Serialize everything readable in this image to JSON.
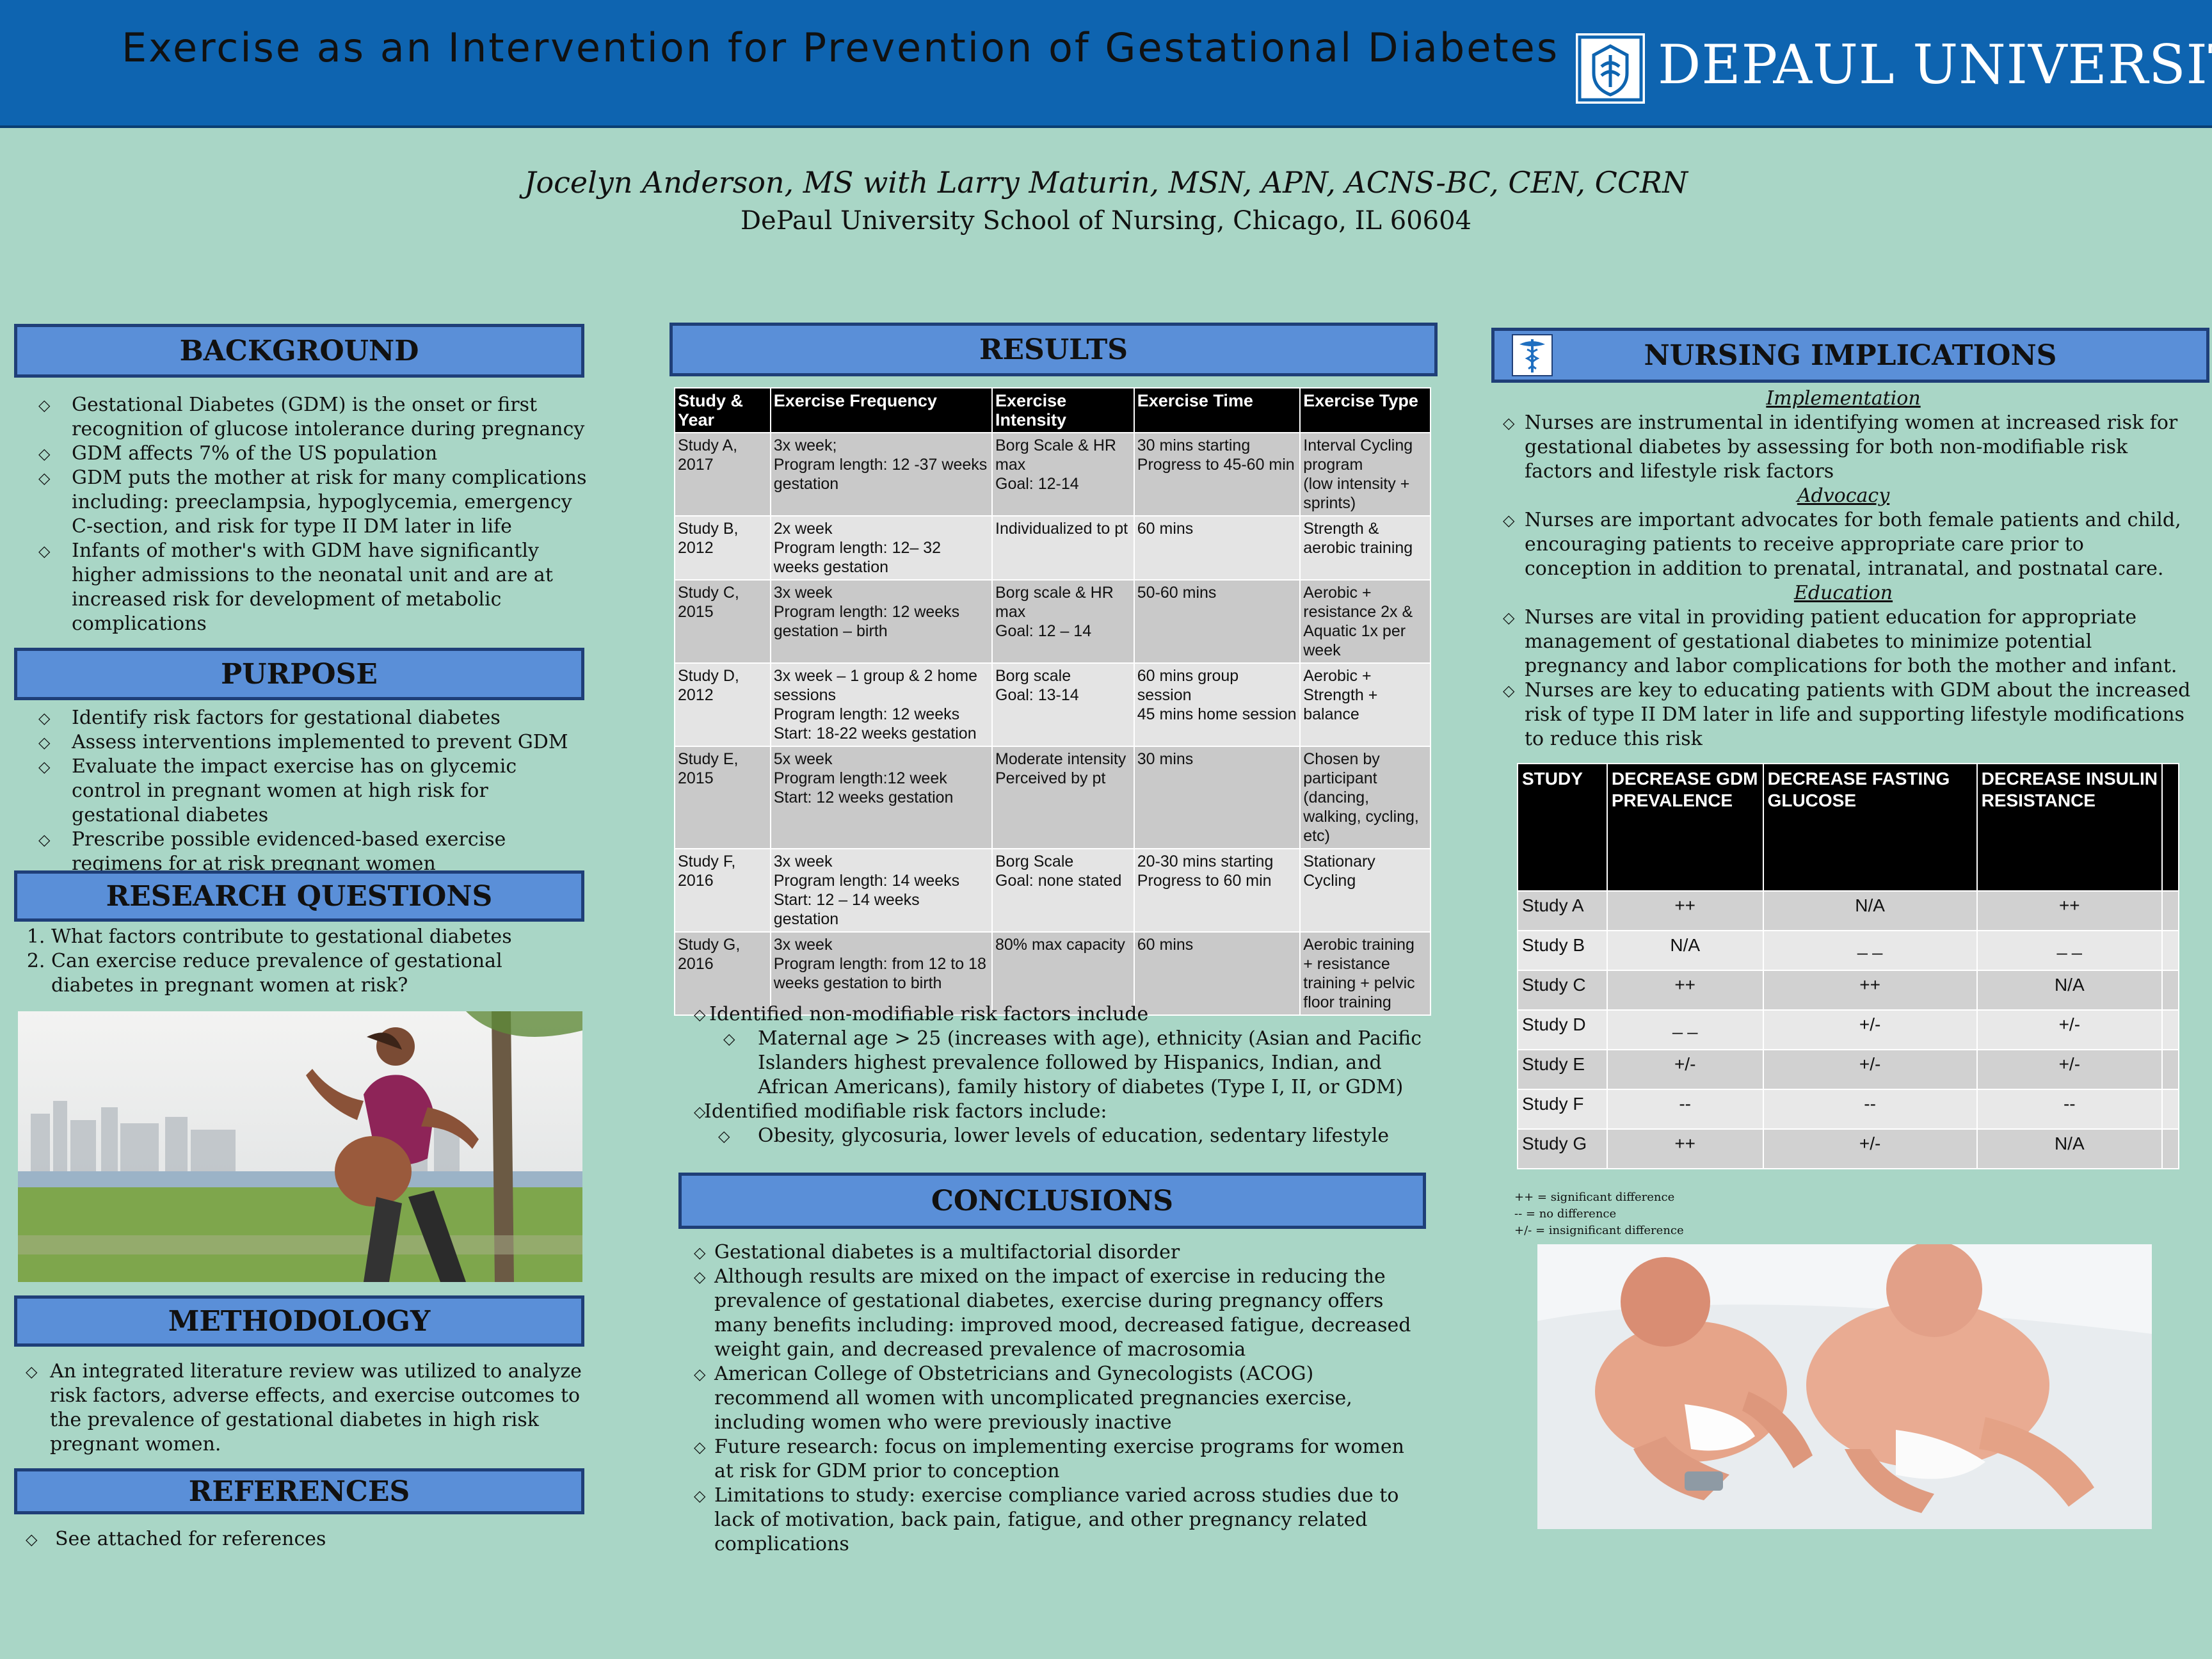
{
  "header": {
    "title": "Exercise as an Intervention for Prevention of Gestational Diabetes",
    "university": "DEPAUL UNIVERSITY"
  },
  "authors": "Jocelyn Anderson, MS with Larry Maturin, MSN, APN, ACNS-BC, CEN, CCRN",
  "affiliation": "DePaul University School of Nursing, Chicago, IL 60604",
  "background": {
    "heading": "BACKGROUND",
    "items": [
      "Gestational Diabetes (GDM) is the onset or first recognition of glucose intolerance during pregnancy",
      "GDM affects 7% of the US population",
      "GDM puts the mother at risk for many complications including: preeclampsia, hypoglycemia, emergency C-section, and risk for type II DM later in life",
      "Infants of mother's with GDM have significantly higher admissions to the neonatal unit and are at increased risk for development of metabolic complications"
    ]
  },
  "purpose": {
    "heading": "PURPOSE",
    "items": [
      "Identify risk factors for gestational diabetes",
      "Assess interventions implemented to prevent GDM",
      "Evaluate the impact exercise has on glycemic control in pregnant women at high risk for gestational diabetes",
      "Prescribe possible evidenced-based exercise regimens for at risk pregnant women"
    ]
  },
  "research_questions": {
    "heading": "RESEARCH QUESTIONS",
    "items": [
      "What factors contribute to gestational diabetes",
      "Can exercise reduce prevalence of gestational diabetes in pregnant women at risk?"
    ]
  },
  "methodology": {
    "heading": "METHODOLOGY",
    "items": [
      "An  integrated literature review  was  utilized to analyze risk factors,  adverse effects, and exercise outcomes to the prevalence of gestational diabetes in high risk pregnant women."
    ]
  },
  "references": {
    "heading": "REFERENCES",
    "items": [
      "See attached for references"
    ]
  },
  "results": {
    "heading": "RESULTS",
    "columns": [
      "Study & Year",
      "Exercise Frequency",
      "Exercise Intensity",
      "Exercise Time",
      "Exercise Type"
    ],
    "rows": [
      [
        "Study A,\n2017",
        "3x week;\nProgram length: 12 -37 weeks gestation",
        "Borg Scale & HR max\nGoal: 12-14",
        "30 mins starting\nProgress to 45-60 min",
        "Interval Cycling program\n(low intensity + sprints)"
      ],
      [
        "Study B,\n2012",
        "2x week\nProgram length: 12– 32 weeks gestation",
        "Individualized to pt",
        "60 mins",
        "Strength &\naerobic training"
      ],
      [
        "Study C,\n2015",
        "3x week\nProgram length: 12 weeks gestation – birth",
        "Borg scale & HR max\nGoal: 12 – 14",
        "50-60 mins",
        "Aerobic +\nresistance 2x &\nAquatic 1x per week"
      ],
      [
        "Study D,\n2012",
        "3x week – 1 group & 2 home sessions\nProgram length: 12 weeks\nStart: 18-22 weeks gestation",
        "Borg scale\nGoal: 13-14",
        "60 mins group session\n45 mins home session",
        "Aerobic +\nStrength +\nbalance"
      ],
      [
        "Study E,\n2015",
        "5x week\nProgram length:12 week\nStart: 12 weeks gestation",
        "Moderate intensity\nPerceived by pt",
        "30 mins",
        "Chosen by participant (dancing, walking, cycling, etc)"
      ],
      [
        "Study F,\n2016",
        "3x week\nProgram length: 14 weeks\nStart: 12 – 14 weeks gestation",
        "Borg Scale\nGoal: none stated",
        "20-30 mins starting\nProgress to 60 min",
        "Stationary\nCycling"
      ],
      [
        "Study G,\n2016",
        "3x week\nProgram length: from 12 to 18 weeks gestation to birth",
        "80% max capacity",
        "60 mins",
        "Aerobic training\n+ resistance training + pelvic floor training"
      ]
    ],
    "bullets": [
      {
        "text": "Identified non-modifiable risk factors include",
        "sub": [
          "Maternal age > 25 (increases with age), ethnicity (Asian and Pacific Islanders highest prevalence followed by Hispanics, Indian, and African Americans), family history of diabetes (Type I, II, or GDM)"
        ]
      },
      {
        "text": "Identified modifiable risk factors include:",
        "sub": [
          "Obesity, glycosuria, lower levels of education, sedentary lifestyle"
        ]
      }
    ]
  },
  "conclusions": {
    "heading": "CONCLUSIONS",
    "items": [
      "Gestational diabetes is a multifactorial disorder",
      "Although results are mixed on the impact of exercise in reducing the prevalence of gestational diabetes, exercise during pregnancy offers many benefits including: improved mood, decreased fatigue, decreased weight gain,  and decreased prevalence of macrosomia",
      "American College of Obstetricians and Gynecologists (ACOG) recommend all women with uncomplicated pregnancies exercise, including women who were previously inactive",
      "Future research: focus on implementing exercise programs for women at risk for GDM prior to conception",
      "Limitations to study: exercise compliance varied across studies due to lack of motivation, back pain, fatigue, and other pregnancy related complications"
    ]
  },
  "nursing": {
    "heading": "NURSING IMPLICATIONS",
    "implementation_label": "Implementation",
    "implementation": [
      "Nurses are instrumental in identifying women at increased risk for gestational diabetes by assessing for both non-modifiable risk factors and lifestyle risk factors"
    ],
    "advocacy_label": "Advocacy",
    "advocacy": [
      "Nurses are important advocates for both female patients and child, encouraging patients to receive appropriate care prior to conception in addition to  prenatal,  intranatal, and postnatal care."
    ],
    "education_label": "Education",
    "education": [
      "Nurses are vital in providing patient education for appropriate management of gestational diabetes to minimize potential pregnancy and labor complications for both the mother and infant.",
      "Nurses are key to educating patients with GDM about the increased risk of type II DM later in life and supporting lifestyle modifications to reduce this risk"
    ],
    "table_columns": [
      "STUDY",
      "DECREASE GDM PREVALENCE",
      "DECREASE FASTING GLUCOSE",
      "DECREASE INSULIN RESISTANCE",
      ""
    ],
    "table_rows": [
      [
        "Study A",
        "++",
        "N/A",
        "++"
      ],
      [
        "Study B",
        "N/A",
        "_ _",
        "_ _"
      ],
      [
        "Study C",
        "++",
        "++",
        "N/A"
      ],
      [
        "Study D",
        "_ _",
        "+/-",
        "+/-"
      ],
      [
        "Study E",
        "+/-",
        "+/-",
        "+/-"
      ],
      [
        "Study F",
        "--",
        "--",
        "--"
      ],
      [
        "Study G",
        "++",
        "+/-",
        "N/A"
      ]
    ],
    "legend": [
      "++ = significant  difference",
      "-- = no difference",
      "+/- = insignificant difference"
    ]
  }
}
